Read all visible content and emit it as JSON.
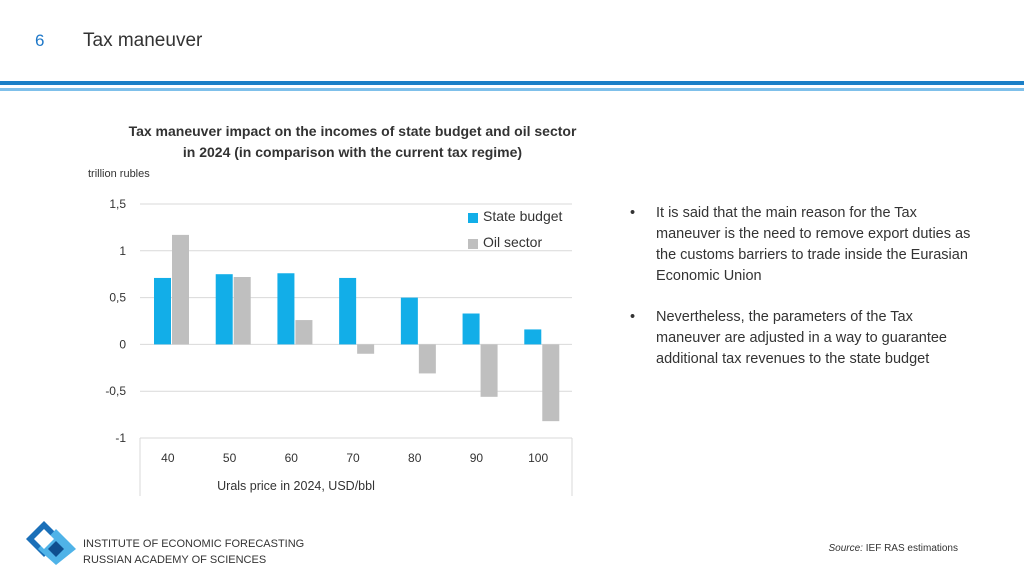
{
  "header": {
    "page_number": "6",
    "title": "Tax maneuver"
  },
  "chart": {
    "title_line1": "Tax maneuver impact on the incomes of state budget and oil sector",
    "title_line2": "in 2024 (in comparison with the current tax regime)",
    "unit": "trillion rubles"
  },
  "chart_data": {
    "type": "bar",
    "title": "Tax maneuver impact on the incomes of state budget and oil sector in 2024 (in comparison with the current tax regime)",
    "xlabel": "Urals price in 2024, USD/bbl",
    "ylabel": "trillion rubles",
    "categories": [
      "40",
      "50",
      "60",
      "70",
      "80",
      "90",
      "100"
    ],
    "ylim": [
      -1,
      1.5
    ],
    "yticks": [
      1.5,
      1,
      0.5,
      0,
      -0.5,
      -1
    ],
    "ytick_labels": [
      "1,5",
      "1",
      "0,5",
      "0",
      "-0,5",
      "-1"
    ],
    "series": [
      {
        "name": "State budget",
        "color": "#12aee8",
        "values": [
          0.71,
          0.75,
          0.76,
          0.71,
          0.5,
          0.33,
          0.16
        ]
      },
      {
        "name": "Oil sector",
        "color": "#bfbfbf",
        "values": [
          1.17,
          0.72,
          0.26,
          -0.1,
          -0.31,
          -0.56,
          -0.82
        ]
      }
    ],
    "legend_position": "top-right"
  },
  "bullets": [
    "It is said that the main reason for the Tax maneuver is the need to remove export duties as the customs barriers to trade inside the Eurasian Economic Union",
    "Nevertheless, the parameters of the Tax maneuver are adjusted in a way to guarantee additional tax revenues to the state budget"
  ],
  "bullet_symbol": "•",
  "footer": {
    "institute_line1": "INSTITUTE OF ECONOMIC FORECASTING",
    "institute_line2": "RUSSIAN ACADEMY OF SCIENCES",
    "source_label": "Source:",
    "source_text": " IEF RAS estimations"
  }
}
